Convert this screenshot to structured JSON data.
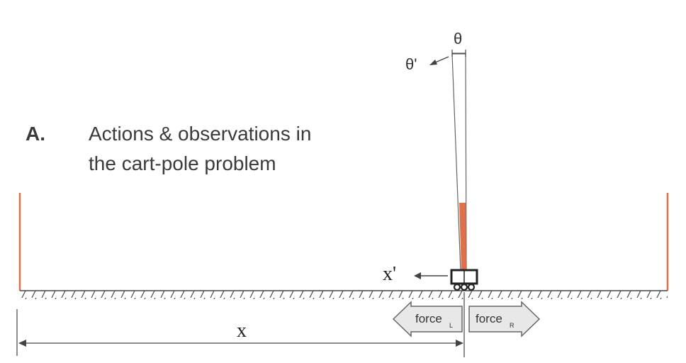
{
  "panel": {
    "letter": "A.",
    "title_line1": "Actions & observations in",
    "title_line2": "the cart-pole problem"
  },
  "labels": {
    "theta": "θ",
    "theta_dot": "θ'",
    "x_dot": "x'",
    "x": "x"
  },
  "force_left": {
    "label": "force",
    "subscript": "L"
  },
  "force_right": {
    "label": "force",
    "subscript": "R"
  },
  "colors": {
    "wall": "#e0704a",
    "pole": "#e0704a",
    "line": "#444444",
    "arrow_fill": "#e8e8e8"
  }
}
